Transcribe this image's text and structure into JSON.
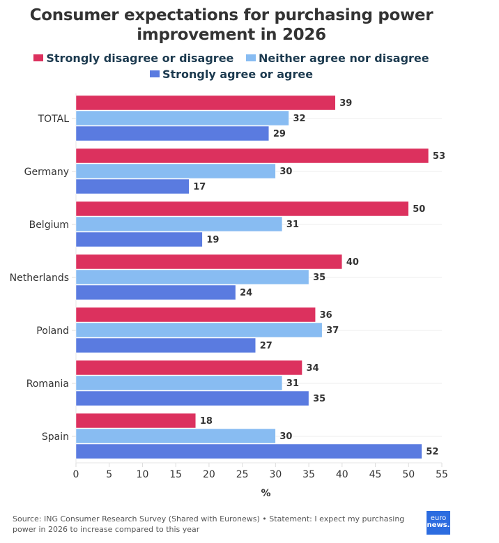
{
  "chart_data": {
    "type": "bar",
    "orientation": "horizontal",
    "title": "Consumer expectations for purchasing power improvement in 2026",
    "categories": [
      "TOTAL",
      "Germany",
      "Belgium",
      "Netherlands",
      "Poland",
      "Romania",
      "Spain"
    ],
    "series": [
      {
        "name": "Strongly disagree or disagree",
        "color": "#dc315e",
        "values": [
          39,
          53,
          50,
          40,
          36,
          34,
          18
        ]
      },
      {
        "name": "Neither agree nor disagree",
        "color": "#88bcf2",
        "values": [
          32,
          30,
          31,
          35,
          37,
          31,
          30
        ]
      },
      {
        "name": "Strongly agree or agree",
        "color": "#5a7be0",
        "values": [
          29,
          17,
          19,
          24,
          27,
          35,
          52
        ]
      }
    ],
    "xlabel": "%",
    "ylabel": "",
    "xlim": [
      0,
      55
    ],
    "xticks": [
      0,
      5,
      10,
      15,
      20,
      25,
      30,
      35,
      40,
      45,
      50,
      55
    ],
    "grid": true,
    "legend_position": "top"
  },
  "footer": {
    "source": "Source: ING Consumer Research Survey (Shared with Euronews) • Statement: I expect my purchasing power in 2026 to increase compared to this year",
    "logo_line1": "euro",
    "logo_line2": "news."
  }
}
